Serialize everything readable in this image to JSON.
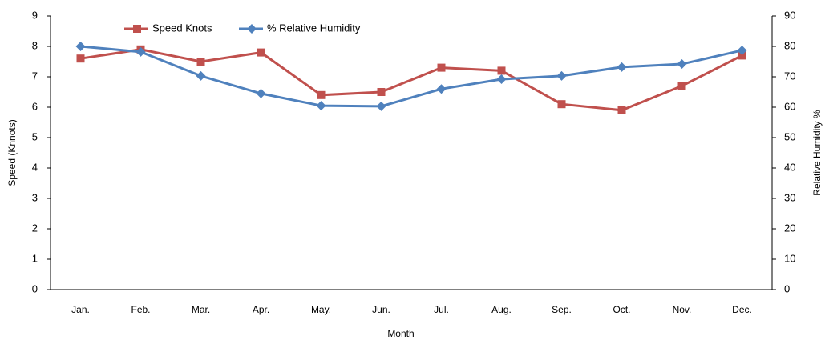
{
  "chart_data": {
    "type": "line",
    "categories": [
      "Jan.",
      "Feb.",
      "Mar.",
      "Apr.",
      "May.",
      "Jun.",
      "Jul.",
      "Aug.",
      "Sep.",
      "Oct.",
      "Nov.",
      "Dec."
    ],
    "series": [
      {
        "name": "Speed Knots",
        "color": "#c0504d",
        "marker": "square",
        "values": [
          7.6,
          7.9,
          7.5,
          7.8,
          6.4,
          6.5,
          7.3,
          7.2,
          6.1,
          5.9,
          6.7,
          7.7
        ]
      },
      {
        "name": "% Relative Humidity",
        "color": "#4f81bd",
        "marker": "diamond",
        "axis": "y2",
        "values": [
          80,
          78.2,
          70.3,
          64.5,
          60.5,
          60.3,
          66,
          69.2,
          70.3,
          73.2,
          74.2,
          78.7
        ]
      }
    ],
    "xlabel": "Month",
    "ylabel": "Speed (Knnots)",
    "y2label": "Relative Humidity %",
    "ylim": [
      0,
      9
    ],
    "yticks": [
      0,
      1,
      2,
      3,
      4,
      5,
      6,
      7,
      8,
      9
    ],
    "y2lim": [
      0,
      90
    ],
    "y2ticks": [
      0,
      10,
      20,
      30,
      40,
      50,
      60,
      70,
      80,
      90
    ],
    "grid": false
  }
}
